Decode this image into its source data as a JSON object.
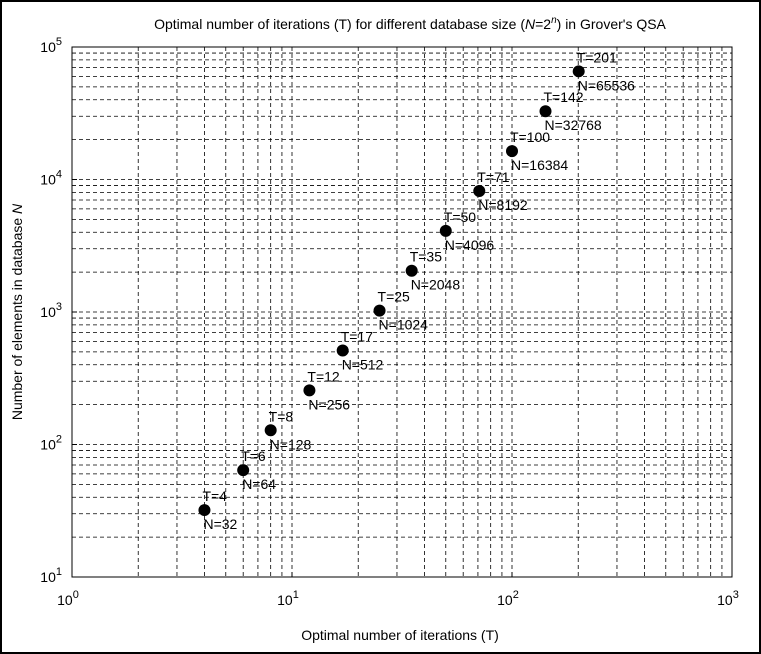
{
  "chart_data": {
    "type": "scatter",
    "title": [
      "Optimal number of iterations (T) for different database size (",
      "N",
      "=2",
      "n",
      ") in Grover's QSA"
    ],
    "x_label": "Optimal number of iterations (T)",
    "y_label": [
      "Number of elements in database ",
      "N"
    ],
    "x": [
      4,
      6,
      8,
      12,
      17,
      25,
      35,
      50,
      71,
      100,
      142,
      201
    ],
    "values": [
      32,
      64,
      128,
      256,
      512,
      1024,
      2048,
      4096,
      8192,
      16384,
      32768,
      65536
    ],
    "x_value_labels": [
      "T=4",
      "T=6",
      "T=8",
      "T=12",
      "T=17",
      "T=25",
      "T=35",
      "T=50",
      "T=71",
      "T=100",
      "T=142",
      "T=201"
    ],
    "value_labels": [
      "N=32",
      "N=64",
      "N=128",
      "N=256",
      "N=512",
      "N=1024",
      "N=2048",
      "N=4096",
      "N=8192",
      "N=16384",
      "N=32768",
      "N=65536"
    ],
    "color": "#000000",
    "x_log": true,
    "y_log": true,
    "xlim": [
      1,
      1000
    ],
    "ylim": [
      10,
      100000
    ],
    "xticks": [
      {
        "value": 1,
        "label": [
          "10",
          "0"
        ]
      },
      {
        "value": 10,
        "label": [
          "10",
          "1"
        ]
      },
      {
        "value": 100,
        "label": [
          "10",
          "2"
        ]
      },
      {
        "value": 1000,
        "label": [
          "10",
          "3"
        ]
      }
    ],
    "yticks": [
      {
        "value": 10,
        "label": [
          "10",
          "1"
        ]
      },
      {
        "value": 100,
        "label": [
          "10",
          "2"
        ]
      },
      {
        "value": 1000,
        "label": [
          "10",
          "3"
        ]
      },
      {
        "value": 10000,
        "label": [
          "10",
          "4"
        ]
      },
      {
        "value": 100000,
        "label": [
          "10",
          "5"
        ]
      }
    ],
    "grid": true,
    "minor_grid": true
  }
}
